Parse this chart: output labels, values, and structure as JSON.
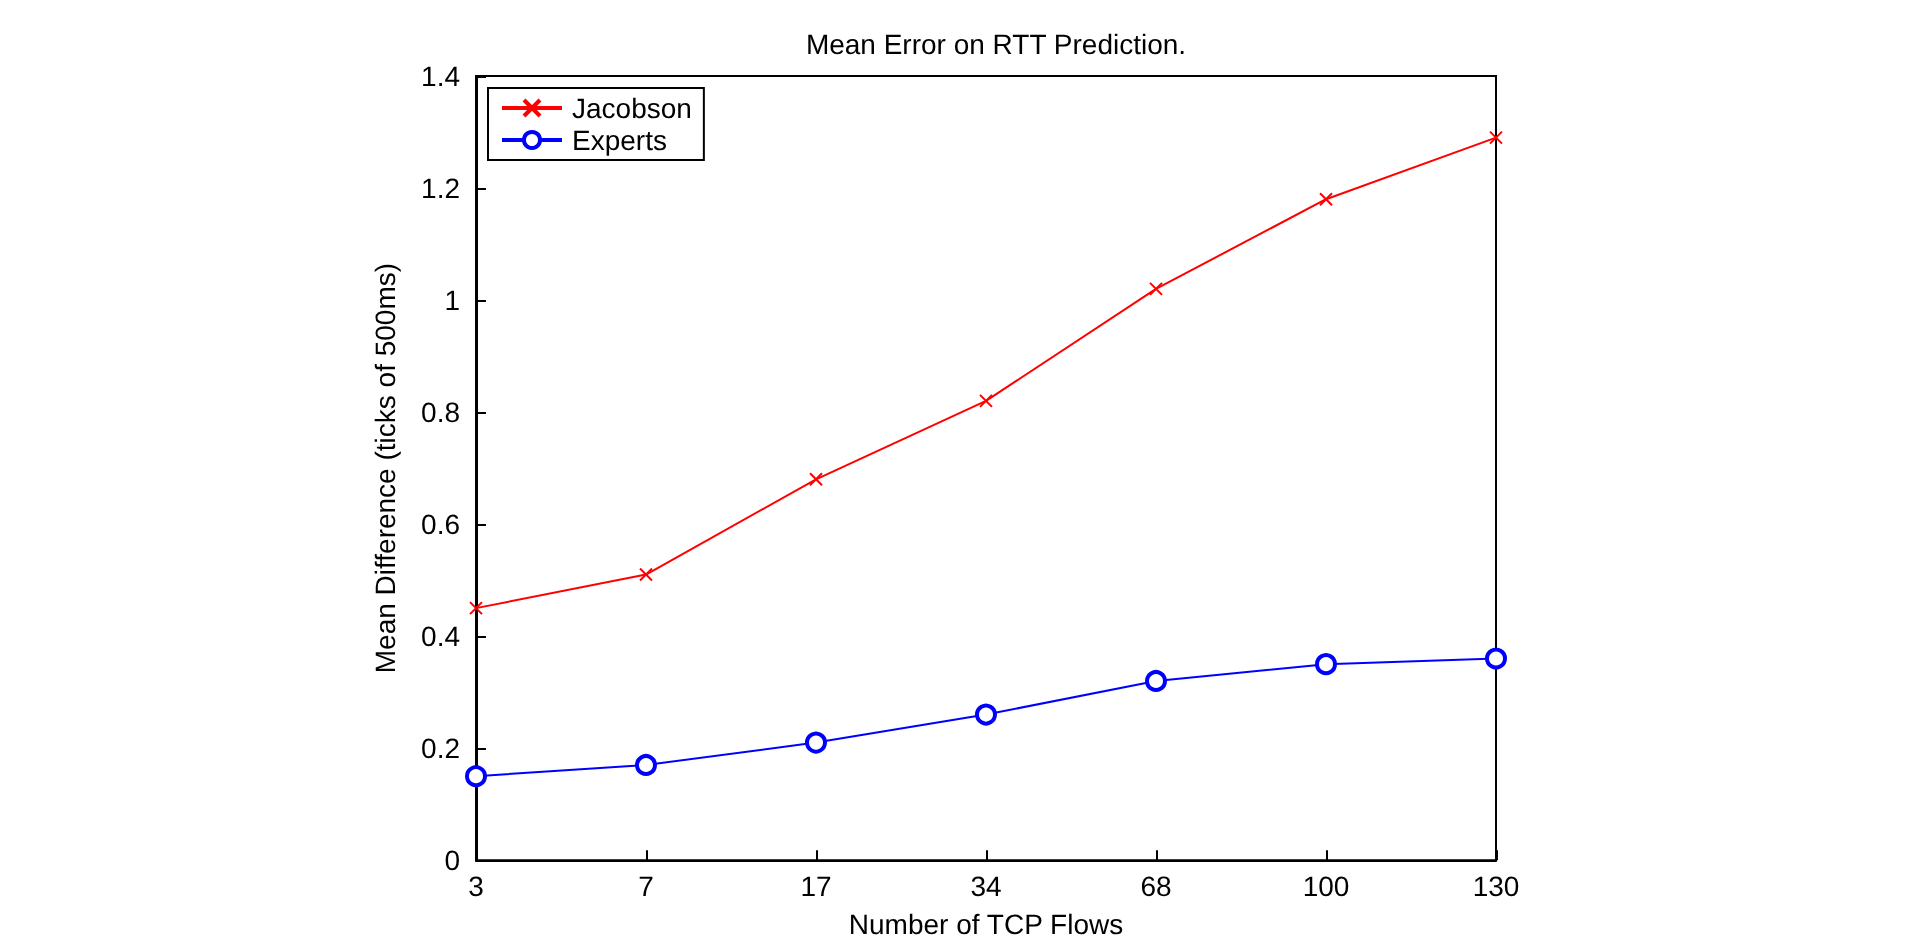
{
  "chart_data": {
    "type": "line",
    "title": "Mean Error on RTT Prediction.",
    "xlabel": "Number of TCP Flows",
    "ylabel": "Mean Difference (ticks of 500ms)",
    "categories": [
      "3",
      "7",
      "17",
      "34",
      "68",
      "100",
      "130"
    ],
    "series": [
      {
        "name": "Jacobson",
        "color": "#ff0000",
        "marker": "cross",
        "values": [
          0.45,
          0.51,
          0.68,
          0.82,
          1.02,
          1.18,
          1.29
        ]
      },
      {
        "name": "Experts",
        "color": "#0000ff",
        "marker": "circle",
        "values": [
          0.15,
          0.17,
          0.21,
          0.26,
          0.32,
          0.35,
          0.36
        ]
      }
    ],
    "ylim": [
      0,
      1.4
    ],
    "yticks": [
      0,
      0.2,
      0.4,
      0.6,
      0.8,
      1,
      1.2,
      1.4
    ],
    "grid": false,
    "legend": "top left",
    "line_style": "solid"
  }
}
